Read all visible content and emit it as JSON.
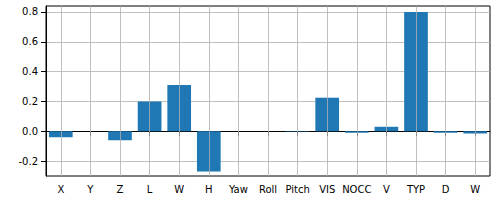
{
  "chart_data": {
    "type": "bar",
    "categories": [
      "X",
      "Y",
      "Z",
      "L",
      "W",
      "H",
      "Yaw",
      "Roll",
      "Pitch",
      "VIS",
      "NOCC",
      "V",
      "TYP",
      "D",
      "W"
    ],
    "values": [
      -0.04,
      0,
      -0.06,
      0.2,
      0.31,
      -0.27,
      0,
      0,
      -0.003,
      0.225,
      -0.01,
      0.03,
      0.8,
      -0.01,
      -0.015
    ],
    "color": "#1f77b4",
    "ylim": [
      -0.3,
      0.84
    ],
    "yticks": [
      -0.2,
      {
        "value": 0,
        "label": "0.0"
      },
      0.2,
      0.4,
      0.6,
      0.8
    ],
    "grid": true
  }
}
